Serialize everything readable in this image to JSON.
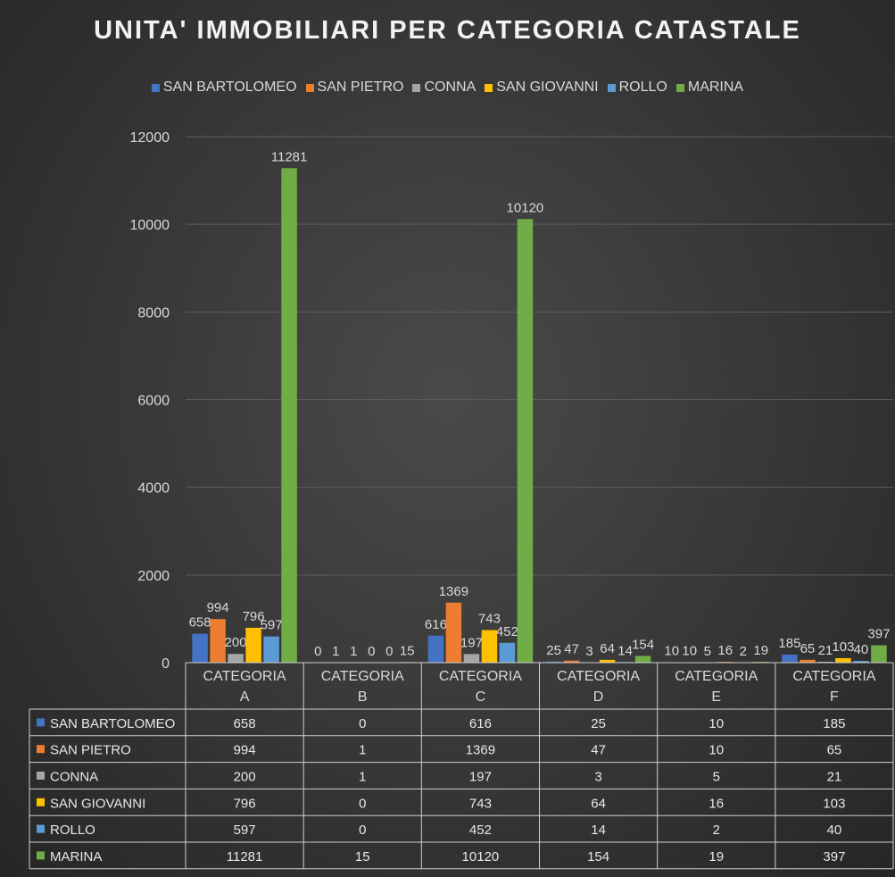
{
  "chart_data": {
    "type": "bar",
    "title": "UNITA' IMMOBILIARI PER CATEGORIA CATASTALE",
    "categories": [
      [
        "CATEGORIA",
        "A"
      ],
      [
        "CATEGORIA",
        "B"
      ],
      [
        "CATEGORIA",
        "C"
      ],
      [
        "CATEGORIA",
        "D"
      ],
      [
        "CATEGORIA",
        "E"
      ],
      [
        "CATEGORIA",
        "F"
      ]
    ],
    "series": [
      {
        "name": "SAN BARTOLOMEO",
        "color": "#4472c4",
        "values": [
          658,
          0,
          616,
          25,
          10,
          185
        ]
      },
      {
        "name": "SAN PIETRO",
        "color": "#ed7d31",
        "values": [
          994,
          1,
          1369,
          47,
          10,
          65
        ]
      },
      {
        "name": "CONNA",
        "color": "#a5a5a5",
        "values": [
          200,
          1,
          197,
          3,
          5,
          21
        ]
      },
      {
        "name": "SAN GIOVANNI",
        "color": "#ffc000",
        "values": [
          796,
          0,
          743,
          64,
          16,
          103
        ]
      },
      {
        "name": "ROLLO",
        "color": "#5b9bd5",
        "values": [
          597,
          0,
          452,
          14,
          2,
          40
        ]
      },
      {
        "name": "MARINA",
        "color": "#70ad47",
        "values": [
          11281,
          15,
          10120,
          154,
          19,
          397
        ]
      }
    ],
    "ylim": [
      0,
      12000
    ],
    "yticks": [
      0,
      2000,
      4000,
      6000,
      8000,
      10000,
      12000
    ],
    "grid": true,
    "legend_position": "top",
    "data_table": true
  }
}
